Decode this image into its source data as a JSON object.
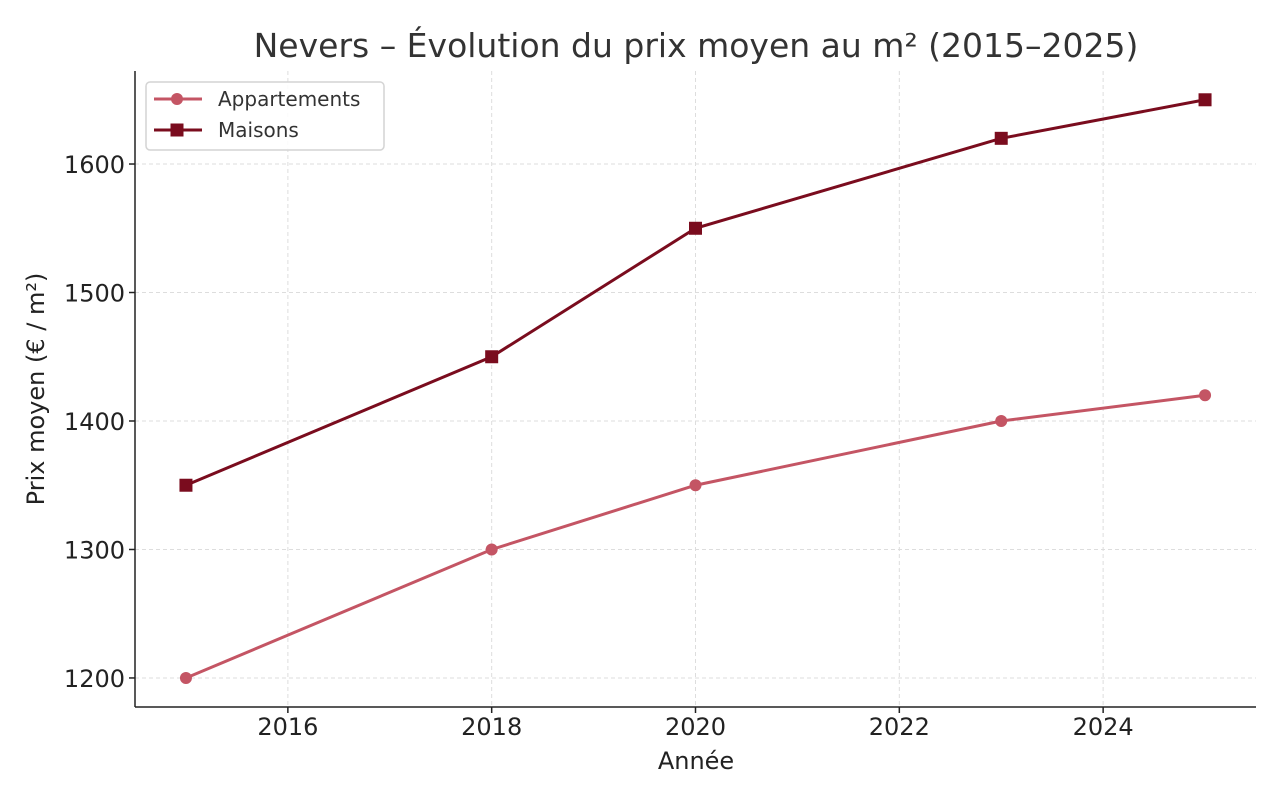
{
  "chart_data": {
    "type": "line",
    "title": "Nevers – Évolution du prix moyen au m² (2015–2025)",
    "xlabel": "Année",
    "ylabel": "Prix moyen (€ / m²)",
    "xlim": [
      2014.5,
      2025.5
    ],
    "ylim": [
      1177.4,
      1672.4
    ],
    "xticks": [
      2016,
      2018,
      2020,
      2022,
      2024
    ],
    "yticks": [
      1200,
      1300,
      1400,
      1500,
      1600
    ],
    "grid": true,
    "legend_position": "top-left",
    "series": [
      {
        "name": "Appartements",
        "color": "#c45564",
        "marker": "circle",
        "x": [
          2015,
          2018,
          2020,
          2023,
          2025
        ],
        "y": [
          1200,
          1300,
          1350,
          1400,
          1420
        ]
      },
      {
        "name": "Maisons",
        "color": "#7a0c1e",
        "marker": "square",
        "x": [
          2015,
          2018,
          2020,
          2023,
          2025
        ],
        "y": [
          1350,
          1450,
          1550,
          1620,
          1650
        ]
      }
    ]
  }
}
